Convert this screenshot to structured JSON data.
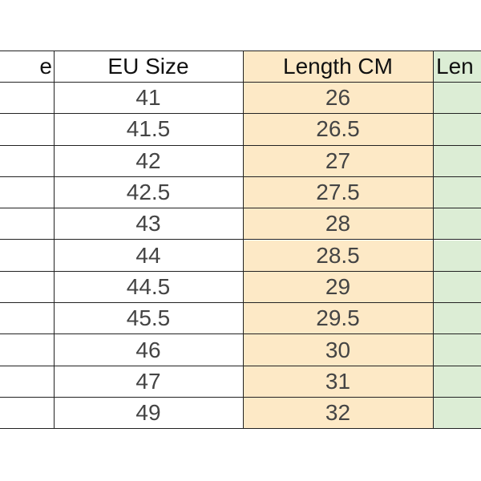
{
  "table": {
    "header": [
      "e",
      "EU Size",
      "Length CM",
      "Len"
    ],
    "rows": [
      [
        "41",
        "26"
      ],
      [
        "41.5",
        "26.5"
      ],
      [
        "42",
        "27"
      ],
      [
        "42.5",
        "27.5"
      ],
      [
        "43",
        "28"
      ],
      [
        "44",
        "28.5"
      ],
      [
        "44.5",
        "29"
      ],
      [
        "45.5",
        "29.5"
      ],
      [
        "46",
        "30"
      ],
      [
        "47",
        "31"
      ],
      [
        "49",
        "32"
      ]
    ]
  }
}
